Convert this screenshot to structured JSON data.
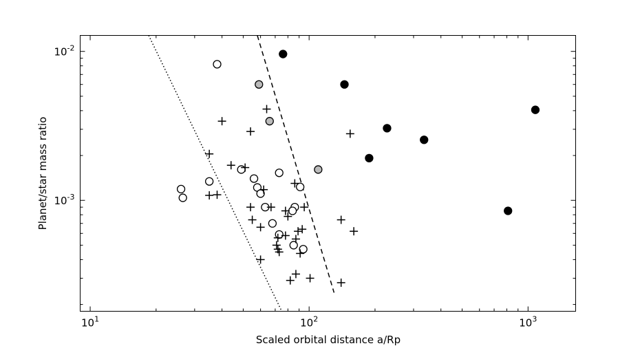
{
  "chart_data": {
    "type": "scatter",
    "title": "",
    "xlabel": "Scaled orbital distance a/Rp",
    "ylabel": "Planet/star mass ratio",
    "xscale": "log",
    "yscale": "log",
    "xlim": [
      9.0,
      1650.0
    ],
    "ylim": [
      0.00018,
      0.0128
    ],
    "xticks": [
      {
        "value": 10,
        "base": "10",
        "exp": "1"
      },
      {
        "value": 100,
        "base": "10",
        "exp": "2"
      },
      {
        "value": 1000,
        "base": "10",
        "exp": "3"
      }
    ],
    "yticks": [
      {
        "value": 0.001,
        "base": "10",
        "exp": "-3"
      },
      {
        "value": 0.01,
        "base": "10",
        "exp": "-2"
      }
    ],
    "grid": false,
    "legend": "none",
    "series": [
      {
        "marker": "filled-circle",
        "color": "#000000",
        "points": [
          [
            76,
            0.0096
          ],
          [
            145,
            0.006
          ],
          [
            227,
            0.00305
          ],
          [
            335,
            0.00255
          ],
          [
            188,
            0.00192
          ],
          [
            1080,
            0.00405
          ],
          [
            810,
            0.00085
          ]
        ]
      },
      {
        "marker": "grey-circle",
        "color": "#bbbbbb",
        "points": [
          [
            59,
            0.006
          ],
          [
            66,
            0.0034
          ],
          [
            110,
            0.00161
          ]
        ]
      },
      {
        "marker": "open-circle",
        "color": "#000000",
        "points": [
          [
            38,
            0.0082
          ],
          [
            26,
            0.00119
          ],
          [
            26.5,
            0.00104
          ],
          [
            35,
            0.00134
          ],
          [
            49,
            0.00161
          ],
          [
            56,
            0.0014
          ],
          [
            58,
            0.00122
          ],
          [
            60,
            0.00111
          ],
          [
            73,
            0.00153
          ],
          [
            63,
            0.0009
          ],
          [
            91,
            0.00123
          ],
          [
            86,
            0.0009
          ],
          [
            84,
            0.00085
          ],
          [
            68,
            0.0007
          ],
          [
            73,
            0.00059
          ],
          [
            85,
            0.0005
          ],
          [
            94,
            0.00047
          ]
        ]
      },
      {
        "marker": "plus",
        "color": "#000000",
        "points": [
          [
            64,
            0.0041
          ],
          [
            40,
            0.0034
          ],
          [
            54,
            0.0029
          ],
          [
            35,
            0.00205
          ],
          [
            44,
            0.00172
          ],
          [
            51,
            0.00166
          ],
          [
            35,
            0.00108
          ],
          [
            38,
            0.00109
          ],
          [
            62,
            0.00118
          ],
          [
            86,
            0.0013
          ],
          [
            54,
            0.0009
          ],
          [
            67,
            0.0009
          ],
          [
            95,
            0.0009
          ],
          [
            78,
            0.00085
          ],
          [
            80,
            0.00078
          ],
          [
            55,
            0.00074
          ],
          [
            60,
            0.00066
          ],
          [
            93,
            0.00064
          ],
          [
            89,
            0.00062
          ],
          [
            140,
            0.00074
          ],
          [
            160,
            0.00062
          ],
          [
            78,
            0.00058
          ],
          [
            72,
            0.00056
          ],
          [
            87,
            0.00055
          ],
          [
            71,
            0.0005
          ],
          [
            72,
            0.00047
          ],
          [
            73,
            0.00045
          ],
          [
            91,
            0.00044
          ],
          [
            60,
            0.0004
          ],
          [
            87,
            0.00032
          ],
          [
            82,
            0.00029
          ],
          [
            101,
            0.0003
          ],
          [
            140,
            0.00028
          ],
          [
            154,
            0.0028
          ]
        ]
      }
    ],
    "lines": [
      {
        "style": "dotted",
        "points": [
          [
            18.5,
            0.0128
          ],
          [
            75,
            0.00018
          ]
        ]
      },
      {
        "style": "dashed",
        "points": [
          [
            58,
            0.0128
          ],
          [
            130,
            0.00024
          ]
        ]
      }
    ]
  }
}
